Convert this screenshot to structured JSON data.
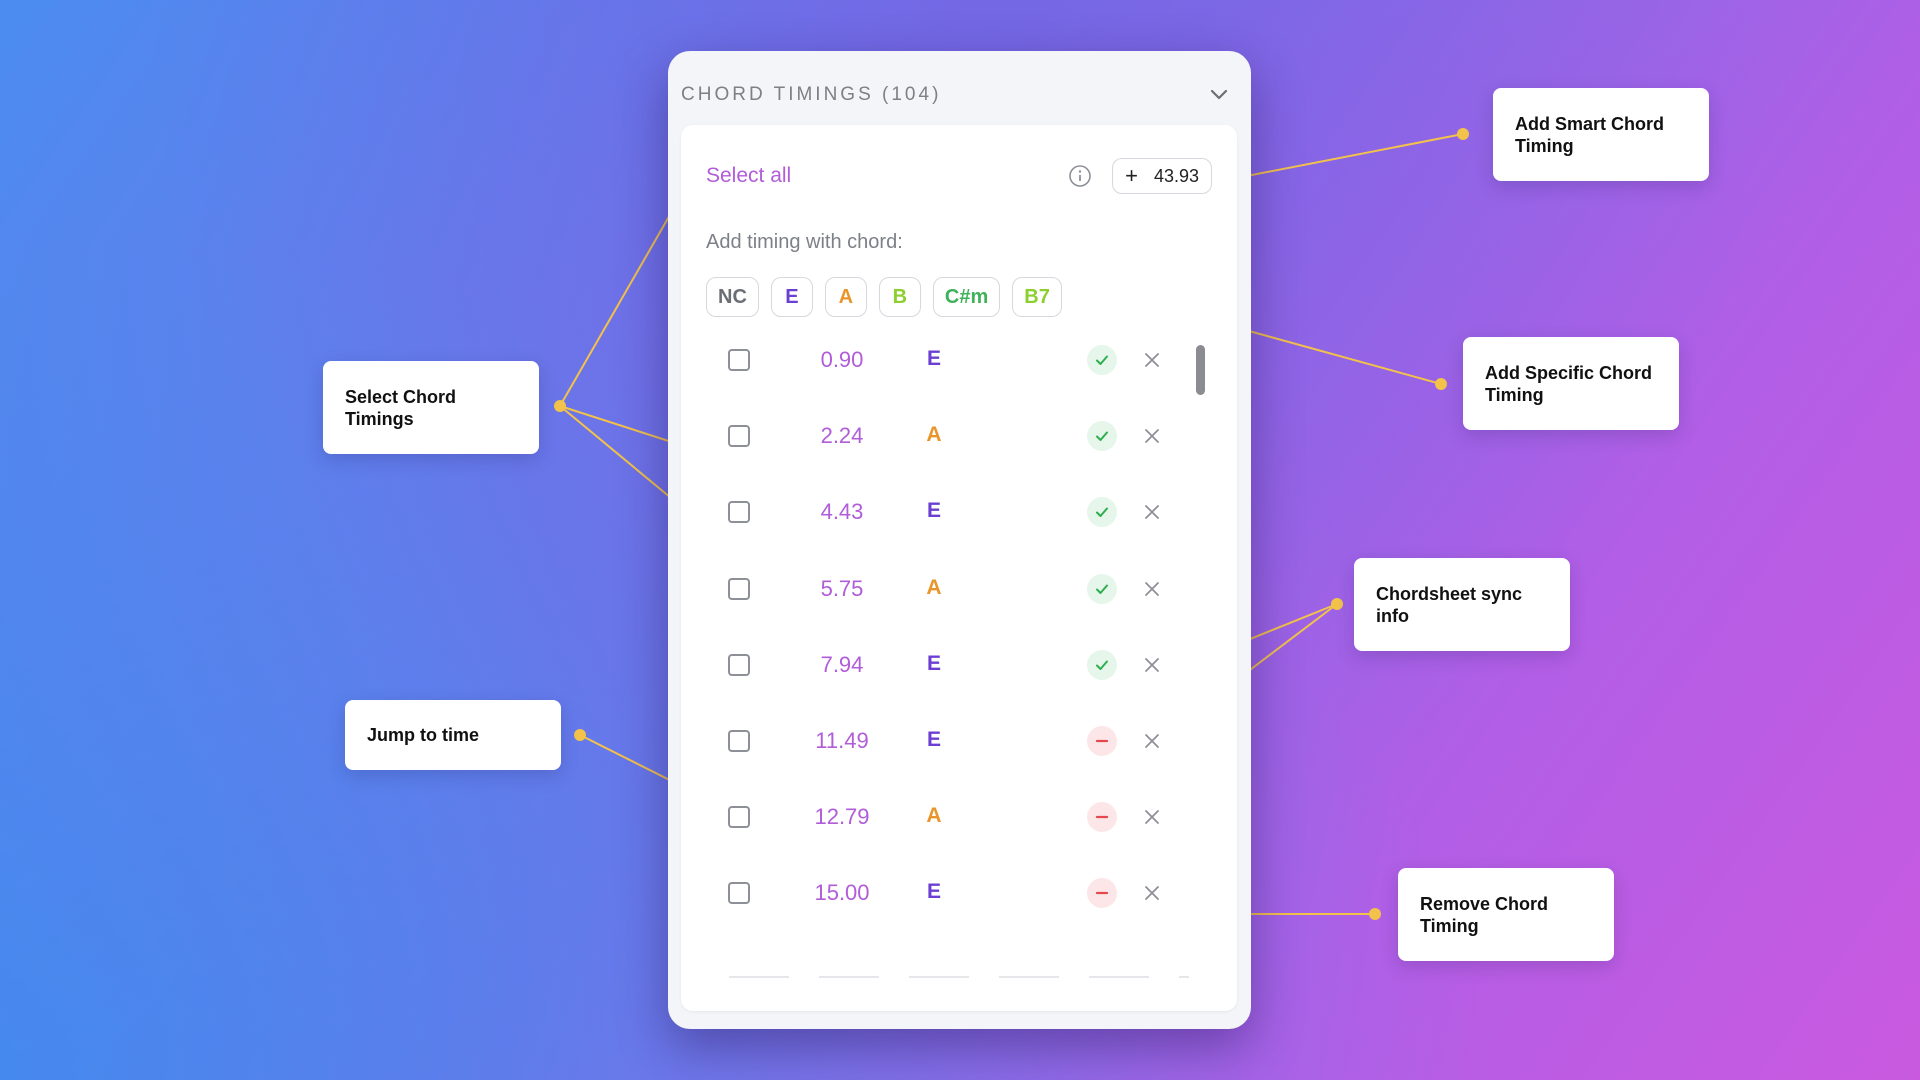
{
  "panel": {
    "title": "CHORD TIMINGS (104)",
    "select_all": "Select all",
    "smart_timing_value": "43.93",
    "smart_timing_plus": "+",
    "add_timing_label": "Add timing with chord:",
    "chips": [
      {
        "label": "NC",
        "color": "#6b6e75"
      },
      {
        "label": "E",
        "color": "#6c3fd3"
      },
      {
        "label": "A",
        "color": "#e8962a"
      },
      {
        "label": "B",
        "color": "#8ccf2e"
      },
      {
        "label": "C#m",
        "color": "#3fb25a"
      },
      {
        "label": "B7",
        "color": "#8ccf2e"
      }
    ],
    "rows": [
      {
        "time": "0.90",
        "chord": "E",
        "chord_color": "#6c3fd3",
        "status": "synced"
      },
      {
        "time": "2.24",
        "chord": "A",
        "chord_color": "#e8962a",
        "status": "synced"
      },
      {
        "time": "4.43",
        "chord": "E",
        "chord_color": "#6c3fd3",
        "status": "synced"
      },
      {
        "time": "5.75",
        "chord": "A",
        "chord_color": "#e8962a",
        "status": "synced"
      },
      {
        "time": "7.94",
        "chord": "E",
        "chord_color": "#6c3fd3",
        "status": "synced"
      },
      {
        "time": "11.49",
        "chord": "E",
        "chord_color": "#6c3fd3",
        "status": "not-synced"
      },
      {
        "time": "12.79",
        "chord": "A",
        "chord_color": "#e8962a",
        "status": "not-synced"
      },
      {
        "time": "15.00",
        "chord": "E",
        "chord_color": "#6c3fd3",
        "status": "not-synced"
      }
    ]
  },
  "callouts": {
    "add_smart": "Add Smart Chord Timing",
    "add_specific": "Add Specific Chord Timing",
    "select_chord": "Select Chord Timings",
    "sync_info": "Chordsheet sync info",
    "jump_to_time": "Jump to time",
    "remove_chord": "Remove Chord Timing"
  },
  "colors": {
    "accent_purple": "#b15dd9",
    "connector": "#f2c24b",
    "synced": "#2fae4e",
    "not_synced": "#e5484d"
  },
  "icons": {
    "chevron": "chevron-down-icon",
    "info": "info-icon",
    "synced": "check-icon",
    "not_synced": "minus-icon",
    "remove": "close-icon"
  }
}
